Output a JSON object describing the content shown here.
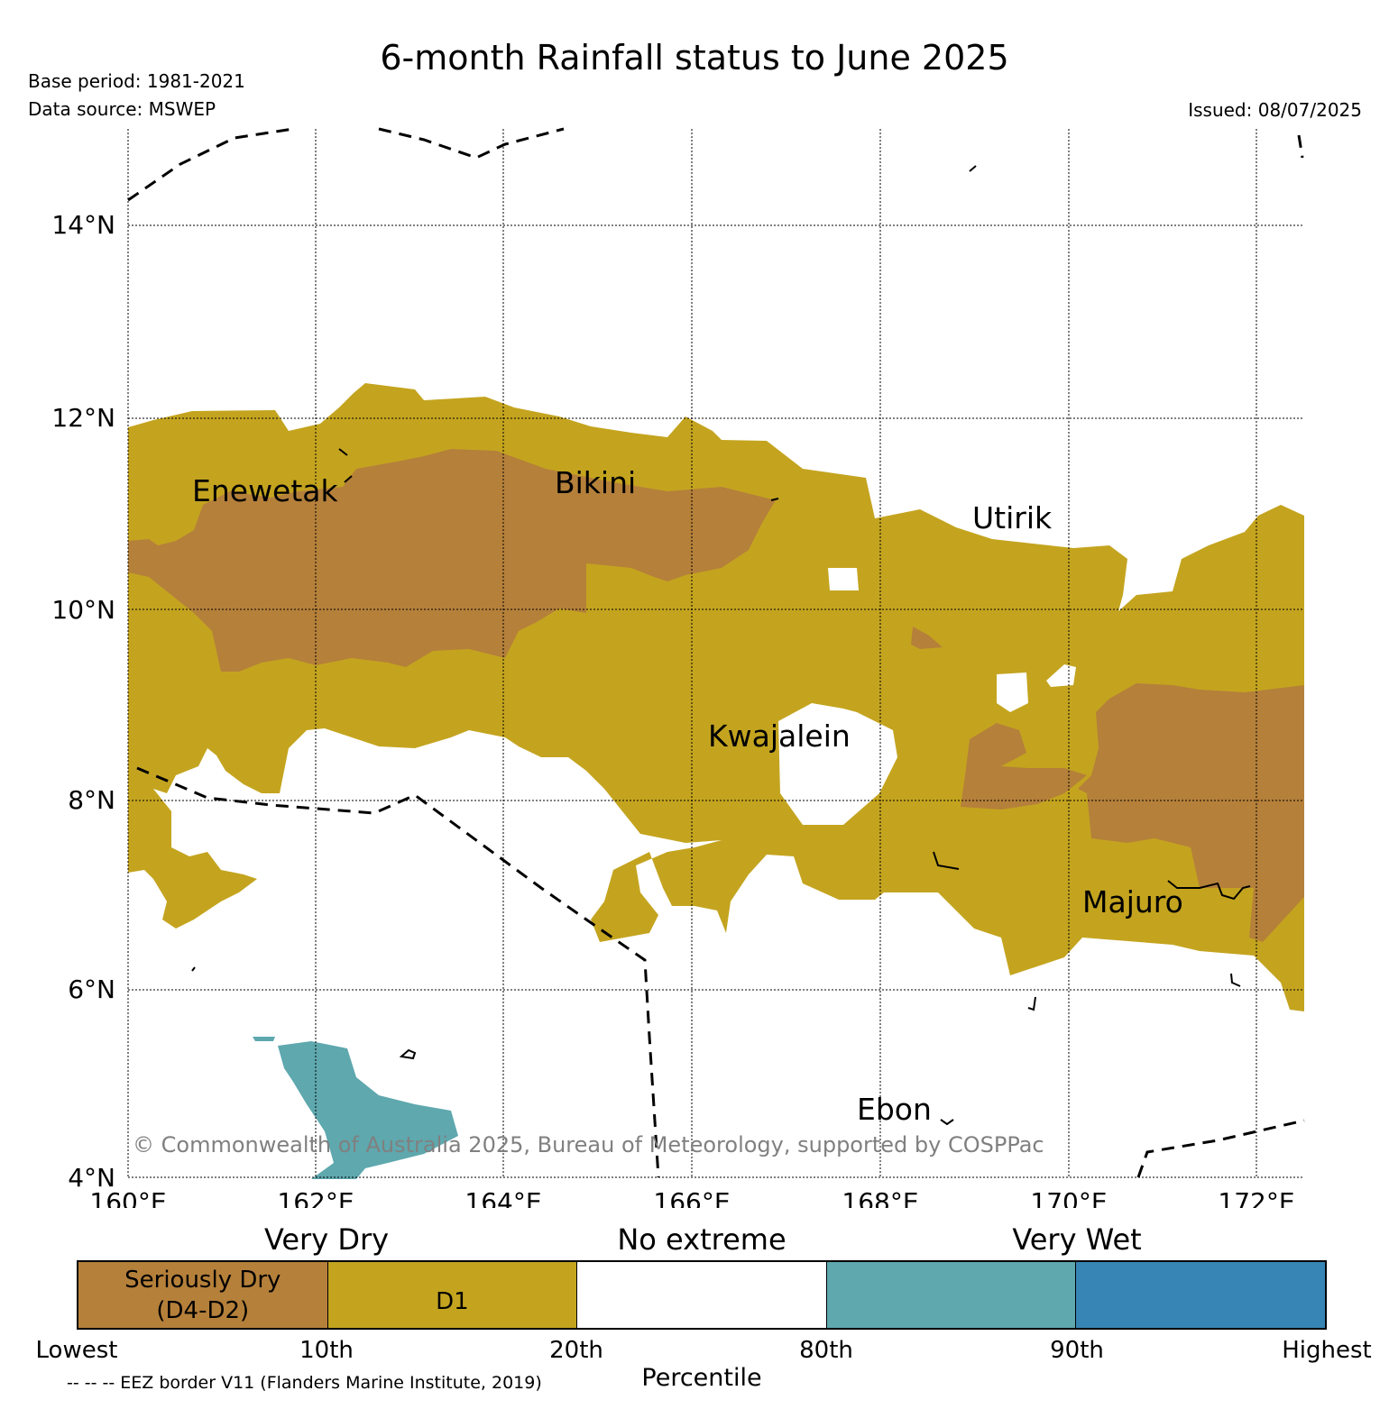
{
  "title": "6-month Rainfall status to June 2025",
  "base_period": "Base period: 1981-2021",
  "data_source": "Data source: MSWEP",
  "issued": "Issued: 08/07/2025",
  "copyright": "© Commonwealth of Australia 2025, Bureau of Meteorology, supported by COSPPac",
  "map": {
    "lat_labels": [
      "14°N",
      "12°N",
      "10°N",
      "8°N",
      "6°N",
      "4°N"
    ],
    "lon_labels": [
      "160°E",
      "162°E",
      "164°E",
      "166°E",
      "168°E",
      "170°E",
      "172°E"
    ],
    "places": [
      "Enewetak",
      "Bikini",
      "Utirik",
      "Kwajalein",
      "Majuro",
      "Ebon"
    ],
    "colors": {
      "seriously_dry": "#b5803a",
      "d1": "#c4a41f",
      "no_extreme": "#ffffff",
      "very_wet_80_90": "#5ea8ae",
      "very_wet_90_high": "#3685b5"
    }
  },
  "legend": {
    "category_headings": [
      "Very Dry",
      "No extreme",
      "Very Wet"
    ],
    "segments": [
      "Seriously Dry",
      "(D4-D2)",
      "D1"
    ],
    "ticks": [
      "Lowest",
      "10th",
      "20th",
      "80th",
      "90th",
      "Highest"
    ],
    "axis_label": "Percentile",
    "eez_note": "-- -- -- EEZ border V11 (Flanders Marine Institute, 2019)"
  }
}
